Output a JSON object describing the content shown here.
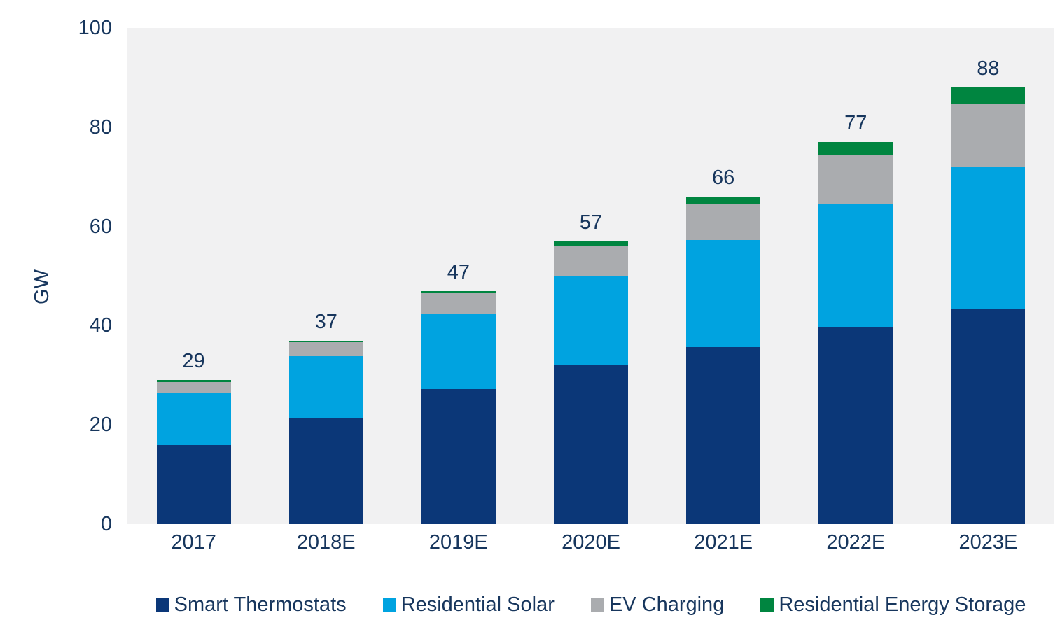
{
  "colors": {
    "text": "#17365D",
    "plot_background": "#F1F1F2",
    "page_background": "#FFFFFF",
    "smart_thermostats": "#0B3778",
    "residential_solar": "#00A3E0",
    "ev_charging": "#AAACAF",
    "residential_energy_storage": "#008540"
  },
  "chart_data": {
    "type": "bar",
    "stacked": true,
    "title": "",
    "xlabel": "",
    "ylabel": "GW",
    "ylim": [
      0,
      100
    ],
    "yticks": [
      0,
      20,
      40,
      60,
      80,
      100
    ],
    "grid": false,
    "legend_position": "bottom",
    "categories": [
      "2017",
      "2018E",
      "2019E",
      "2020E",
      "2021E",
      "2022E",
      "2023E"
    ],
    "totals": [
      29,
      37,
      47,
      57,
      66,
      77,
      88
    ],
    "series": [
      {
        "name": "Smart Thermostats",
        "color": "#0B3778",
        "values": [
          16.0,
          21.3,
          27.2,
          32.1,
          35.7,
          39.7,
          43.5
        ]
      },
      {
        "name": "Residential Solar",
        "color": "#00A3E0",
        "values": [
          10.5,
          12.6,
          15.3,
          17.9,
          21.5,
          24.9,
          28.5
        ]
      },
      {
        "name": "EV Charging",
        "color": "#AAACAF",
        "values": [
          2.2,
          2.8,
          4.0,
          6.1,
          7.3,
          9.9,
          12.6
        ]
      },
      {
        "name": "Residential Energy Storage",
        "color": "#008540",
        "values": [
          0.3,
          0.3,
          0.5,
          0.9,
          1.5,
          2.5,
          3.4
        ]
      }
    ]
  }
}
